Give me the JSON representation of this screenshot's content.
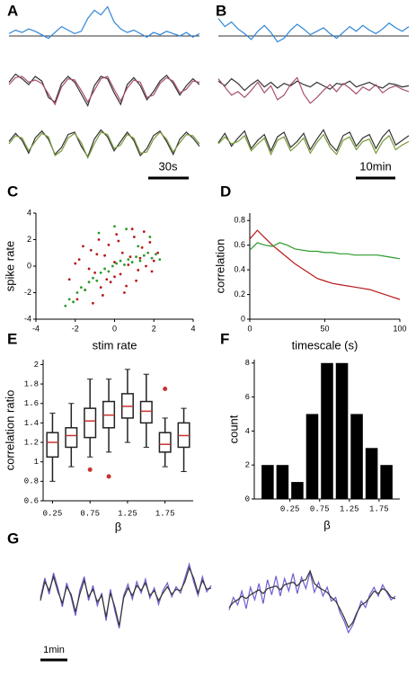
{
  "chart_data": [
    {
      "type": "traces",
      "label": "A",
      "scale_bar": "30s",
      "rows": [
        {
          "series": [
            {
              "color": "#2f86d6",
              "values": [
                0.2,
                0.5,
                0.3,
                0.6,
                0.4,
                0.1,
                -0.2,
                0.3,
                0.8,
                0.5,
                0.2,
                0.4,
                1.5,
                2.2,
                1.8,
                2.5,
                1.2,
                0.6,
                0.3,
                0.5,
                0.2,
                -0.1,
                0.3,
                0.1,
                0.4,
                0.2,
                0.0,
                0.3,
                -0.1,
                0.2
              ]
            }
          ]
        },
        {
          "series": [
            {
              "color": "#333333",
              "values": [
                0.5,
                1.2,
                0.8,
                0.3,
                1.0,
                0.6,
                -0.8,
                -1.2,
                0.4,
                1.0,
                0.5,
                -0.5,
                -1.5,
                0.2,
                1.0,
                0.8,
                -0.4,
                -1.4,
                0.3,
                0.9,
                0.2,
                -1.0,
                -0.3,
                0.6,
                1.1,
                0.4,
                -0.6,
                0.2,
                0.8,
                0.3
              ]
            },
            {
              "color": "#a8506e",
              "values": [
                0.3,
                0.9,
                1.0,
                0.5,
                0.7,
                0.4,
                -0.5,
                -1.4,
                0.1,
                0.8,
                0.7,
                -0.2,
                -1.2,
                -0.2,
                0.8,
                1.0,
                -0.1,
                -1.1,
                0.0,
                0.7,
                0.5,
                -0.8,
                -0.6,
                0.4,
                0.9,
                0.6,
                -0.4,
                -0.1,
                0.6,
                0.5
              ]
            }
          ]
        },
        {
          "series": [
            {
              "color": "#333333",
              "values": [
                0.2,
                0.9,
                0.3,
                -0.8,
                0.5,
                1.1,
                0.4,
                -0.9,
                -0.3,
                0.8,
                1.0,
                -0.2,
                -1.1,
                0.4,
                1.2,
                0.6,
                -0.6,
                0.2,
                1.0,
                0.3,
                -1.0,
                -0.4,
                0.7,
                1.1,
                0.2,
                -0.9,
                0.4,
                1.0,
                0.5,
                -0.2
              ]
            },
            {
              "color": "#7a9a3a",
              "values": [
                0.0,
                0.7,
                0.5,
                -0.6,
                0.2,
                0.9,
                0.6,
                -1.0,
                -0.6,
                0.5,
                0.9,
                0.1,
                -1.2,
                0.0,
                1.0,
                0.8,
                -0.4,
                -0.1,
                0.8,
                0.5,
                -0.8,
                -0.7,
                0.4,
                1.0,
                0.4,
                -0.7,
                0.1,
                0.8,
                0.7,
                0.0
              ]
            }
          ]
        }
      ]
    },
    {
      "type": "traces",
      "label": "B",
      "scale_bar": "10min",
      "rows": [
        {
          "series": [
            {
              "color": "#2f86d6",
              "values": [
                1.5,
                0.8,
                1.2,
                0.6,
                0.2,
                -0.3,
                0.4,
                0.9,
                0.3,
                -0.5,
                -0.2,
                0.5,
                1.0,
                0.6,
                0.1,
                0.4,
                0.7,
                0.2,
                -0.2,
                0.3,
                0.8,
                0.4,
                0.9,
                0.5,
                0.2,
                0.6,
                1.1,
                0.7,
                0.4,
                0.8
              ]
            }
          ]
        },
        {
          "series": [
            {
              "color": "#333333",
              "values": [
                0.6,
                0.2,
                0.8,
                0.4,
                -0.2,
                0.3,
                0.7,
                0.1,
                0.5,
                0.0,
                0.4,
                0.2,
                0.6,
                0.3,
                0.1,
                0.5,
                0.2,
                -0.1,
                0.4,
                0.3,
                0.6,
                0.1,
                0.3,
                0.5,
                0.2,
                0.0,
                0.4,
                0.3,
                0.1,
                0.2
              ]
            },
            {
              "color": "#a8506e",
              "values": [
                0.8,
                0.1,
                -0.6,
                -0.3,
                -0.8,
                -0.2,
                0.5,
                -0.4,
                0.2,
                -1.0,
                -0.6,
                0.3,
                0.9,
                -0.5,
                -1.3,
                -0.8,
                -0.2,
                0.3,
                -0.3,
                0.4,
                0.0,
                -0.5,
                0.1,
                -0.2,
                0.3,
                -0.4,
                0.0,
                0.2,
                -0.1,
                -0.3
              ]
            }
          ]
        },
        {
          "series": [
            {
              "color": "#333333",
              "values": [
                0.1,
                0.9,
                -0.2,
                0.5,
                1.1,
                -0.4,
                0.3,
                0.8,
                -0.6,
                0.6,
                1.0,
                -0.3,
                0.2,
                0.9,
                -0.5,
                0.4,
                1.2,
                0.0,
                -0.6,
                0.7,
                1.0,
                -0.2,
                0.5,
                0.8,
                -0.4,
                0.6,
                1.2,
                -0.1,
                0.3,
                0.7
              ]
            },
            {
              "color": "#7a9a3a",
              "values": [
                0.0,
                0.6,
                0.0,
                0.2,
                0.7,
                -0.6,
                0.0,
                0.5,
                -0.9,
                0.3,
                0.6,
                -0.6,
                -0.1,
                0.5,
                -0.8,
                0.1,
                0.8,
                -0.3,
                -0.9,
                0.3,
                0.6,
                -0.5,
                0.2,
                0.4,
                -0.8,
                0.2,
                0.7,
                -0.5,
                -0.1,
                0.2
              ]
            }
          ]
        }
      ]
    },
    {
      "type": "scatter",
      "label": "C",
      "xlabel": "stim rate",
      "ylabel": "spike rate",
      "xlim": [
        -4,
        4
      ],
      "ylim": [
        -4,
        4
      ],
      "xticks": [
        -4,
        -2,
        0,
        2,
        4
      ],
      "yticks": [
        -4,
        -2,
        0,
        2,
        4
      ],
      "series": [
        {
          "color": "#b81818",
          "x": [
            -2.3,
            -1.8,
            -1.5,
            -1.2,
            -1.0,
            -0.8,
            -0.6,
            -0.5,
            -0.3,
            -0.2,
            0.0,
            0.1,
            0.3,
            0.4,
            0.6,
            0.8,
            1.0,
            1.2,
            1.4,
            1.6,
            1.8,
            2.0,
            2.2,
            -1.9,
            -1.3,
            -0.9,
            -0.4,
            0.2,
            0.7,
            1.1,
            1.5,
            1.9,
            -1.6,
            -0.7,
            0.5,
            1.3,
            -2.0,
            0.9,
            -1.1,
            0.0
          ],
          "y": [
            -1.0,
            0.5,
            -1.8,
            1.2,
            -0.5,
            2.0,
            -2.2,
            0.8,
            1.6,
            -1.2,
            0.3,
            2.4,
            -0.6,
            1.0,
            -1.5,
            0.7,
            2.2,
            -0.3,
            1.4,
            0.0,
            1.8,
            0.4,
            1.0,
            -2.5,
            -0.2,
            0.9,
            -1.0,
            1.9,
            0.1,
            -1.1,
            2.6,
            -0.4,
            1.5,
            -1.6,
            -2.0,
            0.6,
            0.2,
            2.8,
            -2.8,
            -0.8
          ]
        },
        {
          "color": "#2a9a2a",
          "x": [
            -2.5,
            -2.3,
            -2.1,
            -1.9,
            -1.7,
            -1.5,
            -1.3,
            -1.1,
            -0.9,
            -0.7,
            -0.5,
            -0.3,
            -0.1,
            0.1,
            0.3,
            0.5,
            0.7,
            0.9,
            1.1,
            1.3,
            1.5,
            1.7,
            1.9,
            2.1,
            2.3,
            -0.8,
            0.0,
            0.6,
            1.2,
            1.8
          ],
          "y": [
            -3.0,
            -2.5,
            -2.7,
            -2.0,
            -1.6,
            -1.8,
            -1.2,
            -0.9,
            -1.1,
            -0.5,
            -0.2,
            -0.4,
            0.0,
            0.2,
            0.4,
            0.1,
            0.5,
            0.3,
            0.7,
            0.4,
            0.8,
            1.0,
            0.6,
            0.9,
            0.5,
            2.5,
            3.0,
            2.8,
            1.5,
            2.2
          ]
        }
      ]
    },
    {
      "type": "line",
      "label": "D",
      "xlabel": "timescale (s)",
      "ylabel": "correlation",
      "xlim": [
        0,
        100
      ],
      "ylim": [
        0,
        0.86
      ],
      "xticks": [
        0,
        50,
        100
      ],
      "yticks": [
        0,
        0.2,
        0.4,
        0.6,
        0.8
      ],
      "x": [
        0,
        5,
        10,
        15,
        20,
        25,
        30,
        35,
        40,
        45,
        50,
        55,
        60,
        65,
        70,
        75,
        80,
        85,
        90,
        95,
        100
      ],
      "series": [
        {
          "color": "#b81818",
          "values": [
            0.65,
            0.72,
            0.66,
            0.6,
            0.55,
            0.5,
            0.45,
            0.41,
            0.37,
            0.33,
            0.31,
            0.29,
            0.28,
            0.27,
            0.26,
            0.25,
            0.24,
            0.22,
            0.2,
            0.18,
            0.16
          ]
        },
        {
          "color": "#2a9a2a",
          "values": [
            0.56,
            0.62,
            0.6,
            0.59,
            0.62,
            0.6,
            0.57,
            0.56,
            0.55,
            0.55,
            0.54,
            0.54,
            0.53,
            0.53,
            0.52,
            0.52,
            0.52,
            0.52,
            0.51,
            0.5,
            0.49
          ]
        }
      ]
    },
    {
      "type": "box",
      "label": "E",
      "xlabel": "β",
      "ylabel": "correlation ratio",
      "ylim": [
        0.6,
        2.05
      ],
      "yticks": [
        0.6,
        0.8,
        1,
        1.2,
        1.4,
        1.6,
        1.8,
        2
      ],
      "categories": [
        "0.25",
        null,
        "0.75",
        null,
        "1.25",
        null,
        "1.75",
        null
      ],
      "color": "#222222",
      "median_color": "#c83232",
      "boxes": [
        {
          "min": 0.8,
          "q1": 1.05,
          "median": 1.2,
          "q3": 1.3,
          "max": 1.5,
          "outliers": []
        },
        {
          "min": 0.95,
          "q1": 1.15,
          "median": 1.27,
          "q3": 1.35,
          "max": 1.6,
          "outliers": []
        },
        {
          "min": 1.05,
          "q1": 1.25,
          "median": 1.42,
          "q3": 1.55,
          "max": 1.85,
          "outliers": [
            0.92
          ]
        },
        {
          "min": 1.1,
          "q1": 1.35,
          "median": 1.48,
          "q3": 1.62,
          "max": 1.85,
          "outliers": [
            0.85
          ]
        },
        {
          "min": 1.2,
          "q1": 1.45,
          "median": 1.57,
          "q3": 1.7,
          "max": 1.95,
          "outliers": []
        },
        {
          "min": 1.15,
          "q1": 1.4,
          "median": 1.52,
          "q3": 1.62,
          "max": 1.9,
          "outliers": []
        },
        {
          "min": 0.95,
          "q1": 1.1,
          "median": 1.18,
          "q3": 1.3,
          "max": 1.45,
          "outliers": [
            1.75
          ]
        },
        {
          "min": 0.9,
          "q1": 1.15,
          "median": 1.27,
          "q3": 1.4,
          "max": 1.55,
          "outliers": []
        }
      ]
    },
    {
      "type": "histogram",
      "label": "F",
      "xlabel": "β",
      "ylabel": "count",
      "color": "#000000",
      "bins": [
        -0.25,
        0,
        0.25,
        0.5,
        0.75,
        1,
        1.25,
        1.5,
        1.75,
        2
      ],
      "values": [
        2,
        2,
        1,
        5,
        8,
        8,
        5,
        3,
        2
      ],
      "xlim": [
        -0.35,
        2.1
      ],
      "xticks": [
        0.25,
        0.75,
        1.25,
        1.75
      ],
      "ylim": [
        0,
        8.2
      ],
      "yticks": [
        0,
        2,
        4,
        6,
        8
      ]
    },
    {
      "type": "traces",
      "label": "G",
      "scale_bar": "1min",
      "rows": [
        {
          "series": [
            {
              "color": "#6e5fd0",
              "values": [
                0.2,
                1.8,
                0.5,
                2.2,
                1.0,
                -0.5,
                1.4,
                0.3,
                -1.2,
                0.8,
                1.9,
                0.0,
                1.2,
                -0.4,
                0.6,
                -1.6,
                0.9,
                -0.8,
                -2.2,
                0.4,
                1.3,
                0.1,
                1.5,
                0.6,
                1.7,
                0.2,
                1.0,
                -0.3,
                0.8,
                1.4,
                0.3,
                1.1,
                0.6,
                1.8,
                2.9,
                1.5,
                0.4,
                1.9,
                0.7,
                1.2
              ]
            },
            {
              "color": "#333333",
              "values": [
                0.0,
                1.5,
                0.8,
                1.9,
                0.7,
                -0.2,
                1.1,
                0.5,
                -0.9,
                0.5,
                1.6,
                0.3,
                0.9,
                -0.1,
                0.4,
                -1.3,
                0.6,
                -0.5,
                -2.0,
                0.2,
                1.0,
                0.4,
                1.2,
                0.8,
                1.4,
                0.4,
                0.8,
                0.0,
                0.6,
                1.1,
                0.5,
                0.9,
                0.8,
                1.5,
                2.6,
                1.8,
                0.6,
                1.6,
                0.9,
                1.0
              ]
            }
          ]
        },
        {
          "series": [
            {
              "color": "#6e5fd0",
              "values": [
                -0.6,
                0.4,
                -0.2,
                0.9,
                -0.5,
                1.2,
                0.2,
                1.5,
                -0.1,
                1.8,
                0.6,
                2.1,
                0.5,
                1.9,
                0.9,
                2.3,
                0.7,
                2.0,
                1.1,
                2.4,
                0.8,
                1.6,
                0.5,
                1.2,
                0.1,
                0.4,
                -0.8,
                -1.5,
                -2.4,
                -1.8,
                -0.9,
                0.1,
                -0.4,
                0.6,
                1.2,
                0.5,
                1.4,
                0.8,
                0.2,
                0.5
              ]
            },
            {
              "color": "#333333",
              "values": [
                -0.4,
                0.0,
                0.2,
                0.5,
                0.3,
                0.6,
                0.8,
                1.0,
                0.7,
                1.1,
                1.2,
                1.3,
                1.0,
                1.4,
                1.5,
                1.6,
                1.3,
                1.7,
                1.8,
                2.5,
                1.5,
                1.2,
                1.0,
                0.8,
                0.4,
                0.1,
                -0.5,
                -1.2,
                -2.0,
                -1.6,
                -0.8,
                -0.2,
                0.0,
                0.4,
                0.9,
                0.7,
                1.1,
                0.9,
                0.4,
                0.3
              ]
            }
          ]
        }
      ]
    }
  ]
}
